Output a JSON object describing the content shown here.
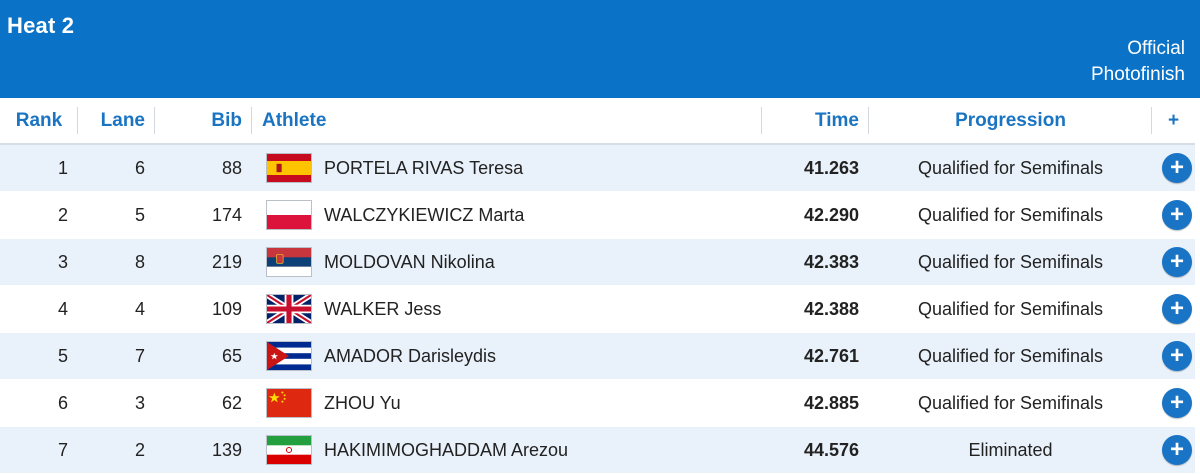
{
  "header": {
    "heat_title": "Heat 2",
    "status_line1": "Official",
    "status_line2": "Photofinish"
  },
  "columns": {
    "rank": "Rank",
    "lane": "Lane",
    "bib": "Bib",
    "athlete": "Athlete",
    "time": "Time",
    "progression": "Progression",
    "more": "+"
  },
  "rows": [
    {
      "rank": "1",
      "lane": "6",
      "bib": "88",
      "flag": "flag-spain-icon",
      "athlete": "PORTELA RIVAS Teresa",
      "time": "41.263",
      "progression": "Qualified for Semifinals",
      "more": "+"
    },
    {
      "rank": "2",
      "lane": "5",
      "bib": "174",
      "flag": "flag-poland-icon",
      "athlete": "WALCZYKIEWICZ Marta",
      "time": "42.290",
      "progression": "Qualified for Semifinals",
      "more": "+"
    },
    {
      "rank": "3",
      "lane": "8",
      "bib": "219",
      "flag": "flag-serbia-icon",
      "athlete": "MOLDOVAN Nikolina",
      "time": "42.383",
      "progression": "Qualified for Semifinals",
      "more": "+"
    },
    {
      "rank": "4",
      "lane": "4",
      "bib": "109",
      "flag": "flag-uk-icon",
      "athlete": "WALKER Jess",
      "time": "42.388",
      "progression": "Qualified for Semifinals",
      "more": "+"
    },
    {
      "rank": "5",
      "lane": "7",
      "bib": "65",
      "flag": "flag-cuba-icon",
      "athlete": "AMADOR Darisleydis",
      "time": "42.761",
      "progression": "Qualified for Semifinals",
      "more": "+"
    },
    {
      "rank": "6",
      "lane": "3",
      "bib": "62",
      "flag": "flag-china-icon",
      "athlete": "ZHOU Yu",
      "time": "42.885",
      "progression": "Qualified for Semifinals",
      "more": "+"
    },
    {
      "rank": "7",
      "lane": "2",
      "bib": "139",
      "flag": "flag-iran-icon",
      "athlete": "HAKIMIMOGHADDAM Arezou",
      "time": "44.576",
      "progression": "Eliminated",
      "more": "+"
    }
  ],
  "colors": {
    "header_bg": "#0a73c8",
    "header_text": "#1a74c2",
    "row_alt": "#e9f1fa",
    "button": "#1a74c6"
  }
}
